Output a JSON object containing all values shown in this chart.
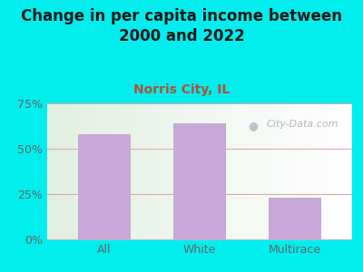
{
  "categories": [
    "All",
    "White",
    "Multirace"
  ],
  "values": [
    58,
    64,
    23
  ],
  "bar_color": "#c8a8d8",
  "title": "Change in per capita income between\n2000 and 2022",
  "subtitle": "Norris City, IL",
  "title_fontsize": 12,
  "subtitle_fontsize": 10,
  "title_color": "#1a1a1a",
  "subtitle_color": "#b05030",
  "background_color": "#00eeee",
  "ylim": [
    0,
    75
  ],
  "yticks": [
    0,
    25,
    50,
    75
  ],
  "ytick_labels": [
    "0%",
    "25%",
    "50%",
    "75%"
  ],
  "tick_color": "#666666",
  "grid_color": "#ddaaaa",
  "watermark": "City-Data.com",
  "watermark_color": "#aaaabb"
}
